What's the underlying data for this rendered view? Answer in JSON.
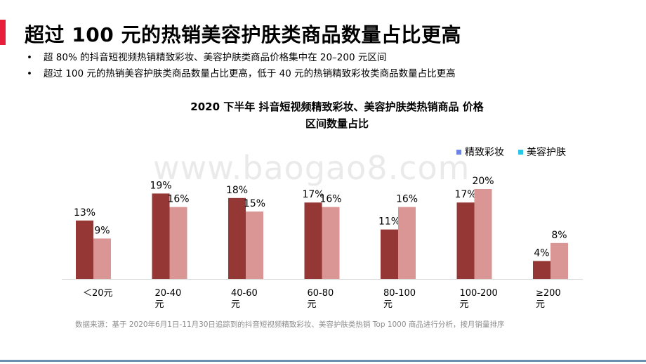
{
  "headline": "超过 100 元的热销美容护肤类商品数量占比更高",
  "bullets": [
    "超 80% 的抖音短视频热销精致彩妆、美容护肤类商品价格集中在 20–200 元区间",
    "超过 100 元的热销美容护肤类商品数量占比更高，低于 40 元的热销精致彩妆类商品数量占比更高"
  ],
  "watermark": "www.baogao8.com",
  "source": "数据来源：基于 2020年6月1日-11月30日追踪到的抖音短视频精致彩妆、美容护肤类热销 Top 1000 商品进行分析，按月销量排序",
  "colors": {
    "accent_bar": "#e61f3b",
    "bottom_line": "#6b8fb2"
  },
  "chart_data": {
    "type": "bar",
    "title_line1": "2020 下半年 抖音短视频精致彩妆、美容护肤类热销商品 价格",
    "title_line2": "区间数量占比",
    "categories": [
      [
        "＜20元"
      ],
      [
        "20-40",
        "元"
      ],
      [
        "40-60",
        "元"
      ],
      [
        "60-80",
        "元"
      ],
      [
        "80-100",
        "元"
      ],
      [
        "100-200",
        "元"
      ],
      [
        "≥200",
        "元"
      ]
    ],
    "series": [
      {
        "name": "精致彩妆",
        "color": "#953735",
        "legend_color": "#6d84e3",
        "values": [
          13,
          19,
          18,
          17,
          11,
          17,
          4
        ]
      },
      {
        "name": "美容护肤",
        "color": "#d99694",
        "legend_color": "#29c6e8",
        "values": [
          9,
          16,
          15,
          16,
          16,
          20,
          8
        ]
      }
    ],
    "unit": "%",
    "ylim": [
      0,
      20
    ],
    "legend_position": "top-right",
    "grid": false
  }
}
